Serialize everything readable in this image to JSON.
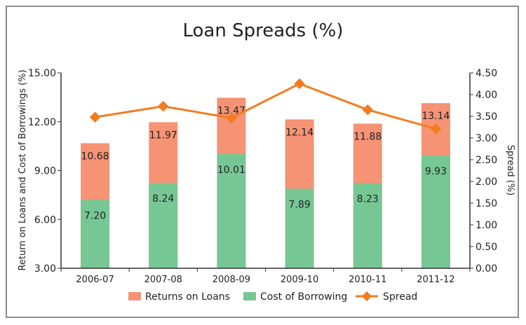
{
  "chart_data": {
    "type": "bar",
    "title": "Loan Spreads (%)",
    "categories": [
      "2006-07",
      "2007-08",
      "2008-09",
      "2009-10",
      "2010-11",
      "2011-12"
    ],
    "series": [
      {
        "name": "Returns on Loans",
        "type": "bar",
        "axis": "left",
        "color": "#f59374",
        "values": [
          10.68,
          11.97,
          13.47,
          12.14,
          11.88,
          13.14
        ]
      },
      {
        "name": "Cost of Borrowing",
        "type": "bar",
        "axis": "left",
        "color": "#77c795",
        "values": [
          7.2,
          8.24,
          10.01,
          7.89,
          8.23,
          9.93
        ]
      },
      {
        "name": "Spread",
        "type": "line",
        "axis": "right",
        "color": "#f47c20",
        "values": [
          3.48,
          3.73,
          3.46,
          4.25,
          3.65,
          3.21
        ]
      }
    ],
    "left_axis": {
      "label": "Return on Loans and Cost of Borrowings (%)",
      "min": 3.0,
      "max": 15.0,
      "ticks": [
        "3.00",
        "6.00",
        "9.00",
        "12.00",
        "15.00"
      ]
    },
    "right_axis": {
      "label": "Spread (%)",
      "min": 0.0,
      "max": 4.5,
      "ticks": [
        "0.00",
        "0.50",
        "1.00",
        "1.50",
        "2.00",
        "2.50",
        "3.00",
        "3.50",
        "4.00",
        "4.50"
      ]
    },
    "bar_labels": {
      "returns": [
        "10.68",
        "11.97",
        "13.47",
        "12.14",
        "11.88",
        "13.14"
      ],
      "cost": [
        "7.20",
        "8.24",
        "10.01",
        "7.89",
        "8.23",
        "9.93"
      ]
    },
    "legend": {
      "placement": "bottom",
      "items": [
        "Returns on Loans",
        "Cost of Borrowing",
        "Spread"
      ]
    },
    "grid": false
  }
}
